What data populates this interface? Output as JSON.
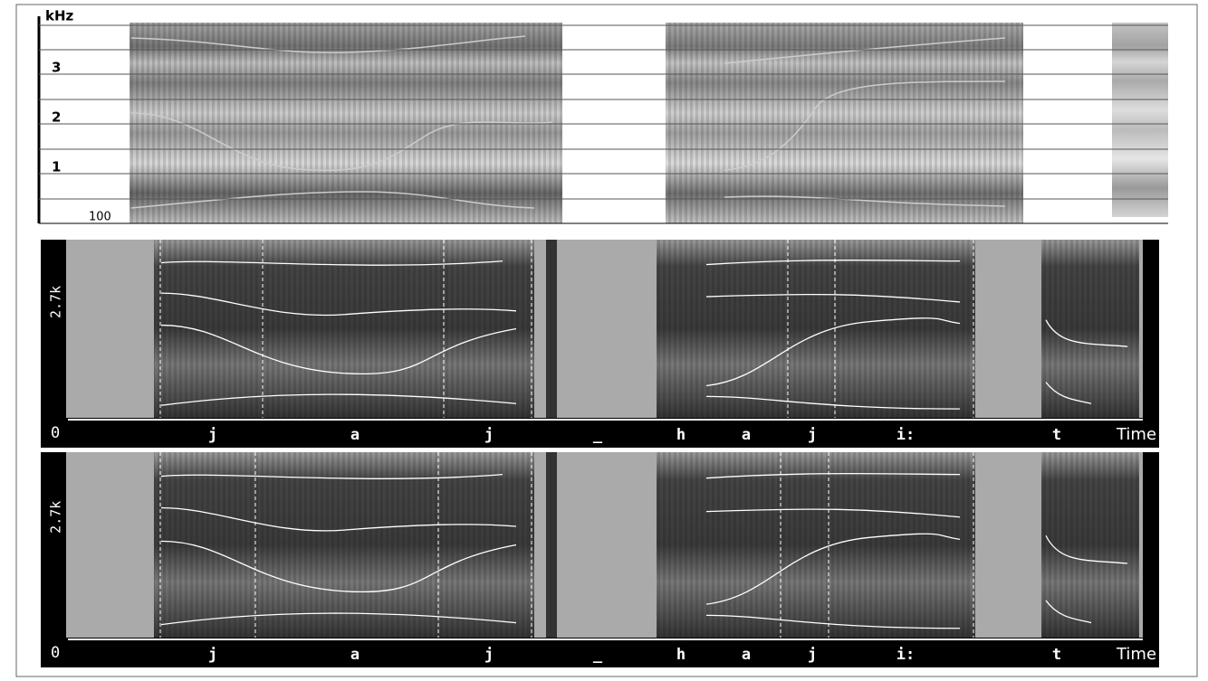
{
  "top_panel": {
    "unit": "kHz",
    "tick_labels": [
      "3",
      "2",
      "1"
    ],
    "baseline_label": "100"
  },
  "panels": [
    {
      "y_label": "2.7k",
      "origin_label": "0",
      "segments": [
        "j",
        "a",
        "j",
        "_",
        "h",
        "a",
        "j",
        "i:",
        "t"
      ],
      "axis_label": "Time"
    },
    {
      "y_label": "2.7k",
      "origin_label": "0",
      "segments": [
        "j",
        "a",
        "j",
        "_",
        "h",
        "a",
        "j",
        "i:",
        "t"
      ],
      "axis_label": "Time"
    }
  ]
}
